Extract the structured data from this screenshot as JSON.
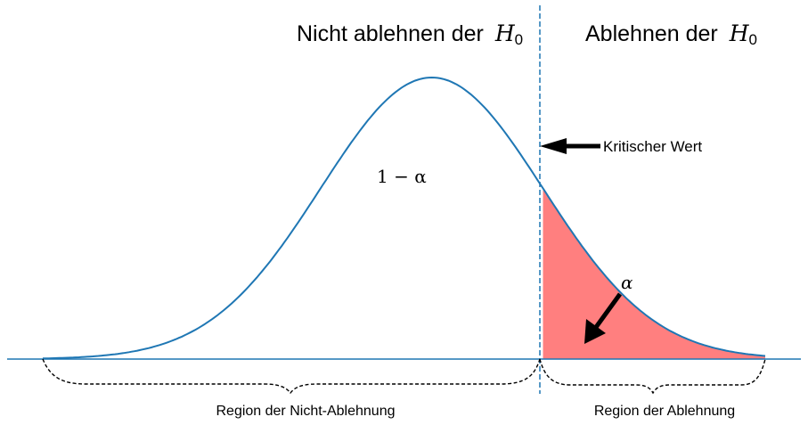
{
  "labels": {
    "nicht_ablehnen_text": "Nicht ablehnen der",
    "ablehnen_text": "Ablehnen der",
    "h_symbol": "H",
    "h_subscript": "0",
    "kritischer_wert": "Kritischer Wert",
    "one_minus_alpha": "1 − α",
    "alpha": "α",
    "region_nicht_ablehnung": "Region der Nicht-Ablehnung",
    "region_ablehnung": "Region der Ablehnung"
  },
  "distribution": {
    "mean": 0,
    "sd": 1,
    "x_range": [
      -3.5,
      3.0
    ],
    "critical_value": 1.0
  },
  "colors": {
    "curve": "#1f77b4",
    "critical_line": "#1f77b4",
    "rejection_fill": "#ff7f7f",
    "axis": "#1f77b4",
    "arrow": "#000000",
    "brace": "#000000"
  }
}
